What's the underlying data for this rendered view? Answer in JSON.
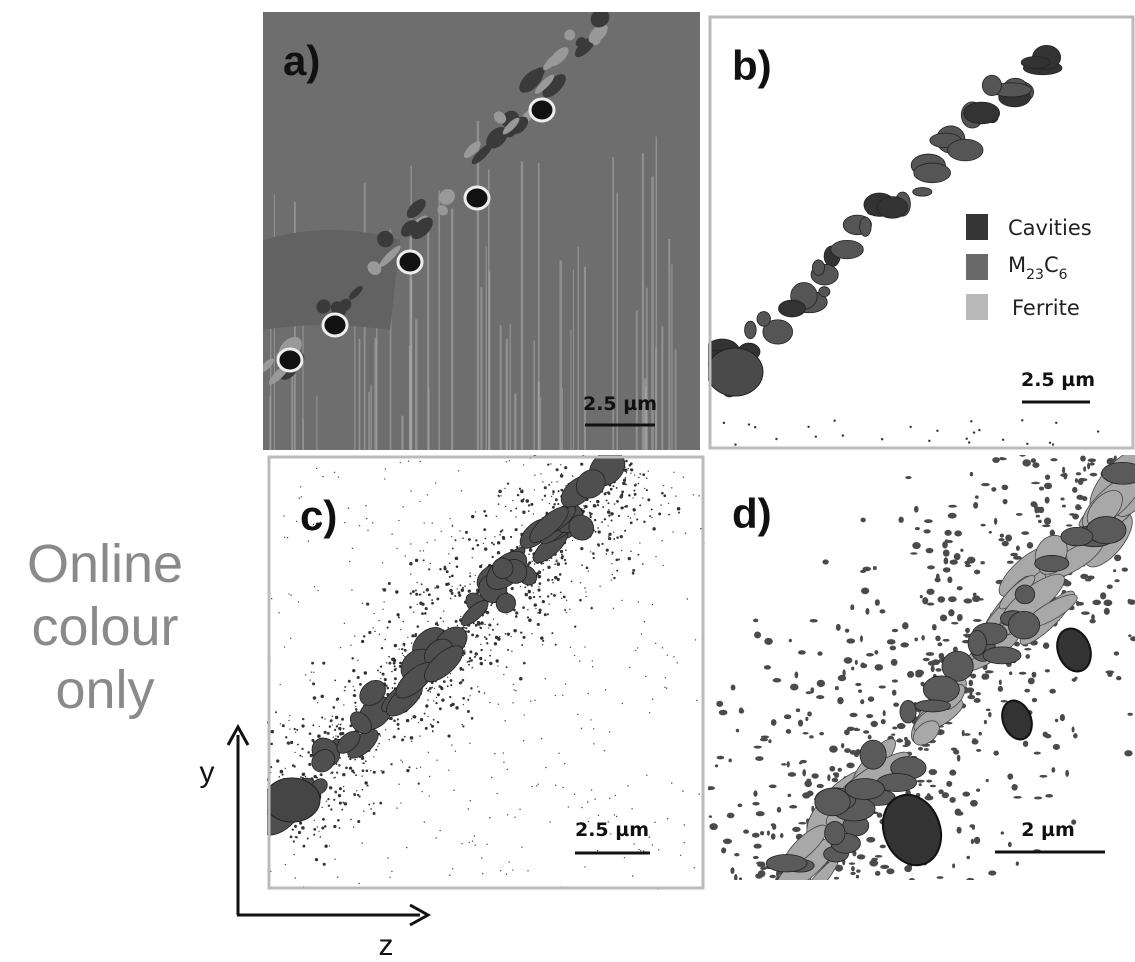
{
  "panels": {
    "a": {
      "label": "a)",
      "scale": "2.5 µm"
    },
    "b": {
      "label": "b)",
      "scale": "2.5 µm"
    },
    "c": {
      "label": "c)",
      "scale": "2.5 µm"
    },
    "d": {
      "label": "d)",
      "scale": "2 µm"
    }
  },
  "legend": {
    "cavities": "Cavities",
    "carbide": [
      "M",
      "23",
      "C",
      "6"
    ],
    "ferrite": "Ferrite"
  },
  "note": [
    "Online",
    "colour",
    "only"
  ],
  "axes": {
    "y": "y",
    "z": "z"
  }
}
